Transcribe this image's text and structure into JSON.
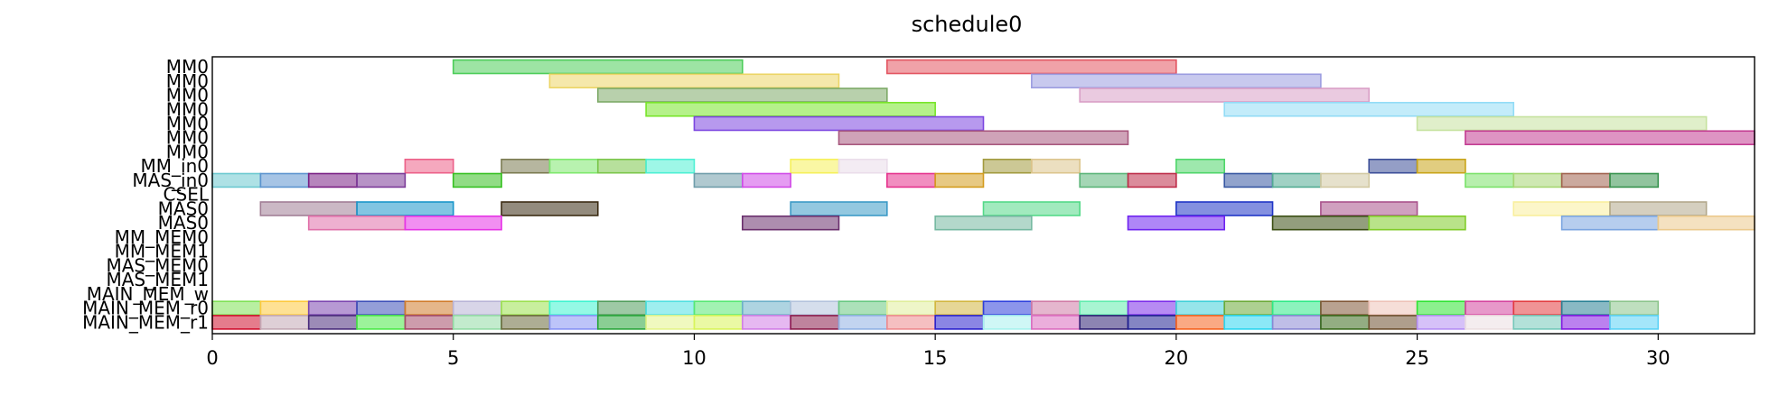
{
  "chart_data": {
    "type": "gantt",
    "title": "schedule0",
    "xlim": [
      0,
      32
    ],
    "x_ticks": [
      0,
      5,
      10,
      15,
      20,
      25,
      30
    ],
    "rows": [
      "MM0",
      "MM0",
      "MM0",
      "MM0",
      "MM0",
      "MM0",
      "MM0",
      "MM_in0",
      "MAS_in0",
      "CSEL",
      "MAS0",
      "MAS0",
      "MM_MEM0",
      "MM_MEM1",
      "MAS_MEM0",
      "MAS_MEM1",
      "MAIN_MEM_w",
      "MAIN_MEM_r0",
      "MAIN_MEM_r1"
    ],
    "tasks": [
      {
        "row": 0,
        "start": 5,
        "end": 11,
        "color": "#4ccd59"
      },
      {
        "row": 0,
        "start": 14,
        "end": 20,
        "color": "#e35561"
      },
      {
        "row": 1,
        "start": 7,
        "end": 13,
        "color": "#ecd566"
      },
      {
        "row": 1,
        "start": 17,
        "end": 23,
        "color": "#9b9ce0"
      },
      {
        "row": 2,
        "start": 8,
        "end": 14,
        "color": "#7daa67"
      },
      {
        "row": 2,
        "start": 18,
        "end": 24,
        "color": "#d99fc6"
      },
      {
        "row": 3,
        "start": 9,
        "end": 15,
        "color": "#78e52a"
      },
      {
        "row": 3,
        "start": 21,
        "end": 27,
        "color": "#92dcf6"
      },
      {
        "row": 4,
        "start": 10,
        "end": 16,
        "color": "#7c46e0"
      },
      {
        "row": 4,
        "start": 25,
        "end": 31,
        "color": "#c6e29f"
      },
      {
        "row": 5,
        "start": 13,
        "end": 19,
        "color": "#a8587e"
      },
      {
        "row": 5,
        "start": 26,
        "end": 32,
        "color": "#c33c92"
      },
      {
        "row": 7,
        "start": 4,
        "end": 5,
        "color": "#ec6088"
      },
      {
        "row": 7,
        "start": 6,
        "end": 7,
        "color": "#7a7a50"
      },
      {
        "row": 7,
        "start": 7,
        "end": 8,
        "color": "#7ee86d"
      },
      {
        "row": 7,
        "start": 8,
        "end": 9,
        "color": "#7bc64a"
      },
      {
        "row": 7,
        "start": 9,
        "end": 10,
        "color": "#4ef0d4"
      },
      {
        "row": 7,
        "start": 12,
        "end": 13,
        "color": "#f6f05a"
      },
      {
        "row": 7,
        "start": 13,
        "end": 14,
        "color": "#eaddea"
      },
      {
        "row": 7,
        "start": 16,
        "end": 17,
        "color": "#a29a3e"
      },
      {
        "row": 7,
        "start": 17,
        "end": 18,
        "color": "#dcc58d"
      },
      {
        "row": 7,
        "start": 20,
        "end": 21,
        "color": "#4fd66a"
      },
      {
        "row": 7,
        "start": 24,
        "end": 25,
        "color": "#3c4f98"
      },
      {
        "row": 7,
        "start": 25,
        "end": 26,
        "color": "#c8a418"
      },
      {
        "row": 8,
        "start": 0,
        "end": 1,
        "color": "#6cc9d0"
      },
      {
        "row": 8,
        "start": 1,
        "end": 2,
        "color": "#5d94cf"
      },
      {
        "row": 8,
        "start": 2,
        "end": 3,
        "color": "#7a2085"
      },
      {
        "row": 8,
        "start": 3,
        "end": 4,
        "color": "#7c3b98"
      },
      {
        "row": 8,
        "start": 5,
        "end": 6,
        "color": "#36c021"
      },
      {
        "row": 8,
        "start": 10,
        "end": 11,
        "color": "#6f9daa"
      },
      {
        "row": 8,
        "start": 11,
        "end": 12,
        "color": "#d04ae7"
      },
      {
        "row": 8,
        "start": 14,
        "end": 15,
        "color": "#e5328d"
      },
      {
        "row": 8,
        "start": 15,
        "end": 16,
        "color": "#d49c1e"
      },
      {
        "row": 8,
        "start": 18,
        "end": 19,
        "color": "#5ab478"
      },
      {
        "row": 8,
        "start": 19,
        "end": 20,
        "color": "#be2c49"
      },
      {
        "row": 8,
        "start": 21,
        "end": 22,
        "color": "#3757a2"
      },
      {
        "row": 8,
        "start": 22,
        "end": 23,
        "color": "#52ab93"
      },
      {
        "row": 8,
        "start": 23,
        "end": 24,
        "color": "#d2c9a2"
      },
      {
        "row": 8,
        "start": 26,
        "end": 27,
        "color": "#7be26a"
      },
      {
        "row": 8,
        "start": 27,
        "end": 28,
        "color": "#a6d672"
      },
      {
        "row": 8,
        "start": 28,
        "end": 29,
        "color": "#a0624e"
      },
      {
        "row": 8,
        "start": 29,
        "end": 30,
        "color": "#37934e"
      },
      {
        "row": 10,
        "start": 1,
        "end": 3,
        "color": "#a17e95"
      },
      {
        "row": 10,
        "start": 3,
        "end": 5,
        "color": "#1996ca"
      },
      {
        "row": 10,
        "start": 6,
        "end": 8,
        "color": "#3b2b12"
      },
      {
        "row": 10,
        "start": 12,
        "end": 14,
        "color": "#3b9ac6"
      },
      {
        "row": 10,
        "start": 16,
        "end": 18,
        "color": "#53d988"
      },
      {
        "row": 10,
        "start": 20,
        "end": 22,
        "color": "#1f35c6"
      },
      {
        "row": 10,
        "start": 23,
        "end": 25,
        "color": "#a9528b"
      },
      {
        "row": 10,
        "start": 27,
        "end": 29,
        "color": "#f9ef9c"
      },
      {
        "row": 10,
        "start": 29,
        "end": 31,
        "color": "#b2a88b"
      },
      {
        "row": 11,
        "start": 2,
        "end": 4,
        "color": "#e070a9"
      },
      {
        "row": 11,
        "start": 4,
        "end": 6,
        "color": "#e633e6"
      },
      {
        "row": 11,
        "start": 11,
        "end": 13,
        "color": "#6a2f6d"
      },
      {
        "row": 11,
        "start": 15,
        "end": 17,
        "color": "#74b8a0"
      },
      {
        "row": 11,
        "start": 19,
        "end": 21,
        "color": "#6e22f0"
      },
      {
        "row": 11,
        "start": 22,
        "end": 24,
        "color": "#3b4f13"
      },
      {
        "row": 11,
        "start": 24,
        "end": 26,
        "color": "#80cc28"
      },
      {
        "row": 11,
        "start": 28,
        "end": 30,
        "color": "#7aa4e0"
      },
      {
        "row": 11,
        "start": 30,
        "end": 32,
        "color": "#ebc98c"
      },
      {
        "row": 17,
        "start": 0,
        "end": 1,
        "color": "#7ee254"
      },
      {
        "row": 17,
        "start": 1,
        "end": 2,
        "color": "#fdc93d"
      },
      {
        "row": 17,
        "start": 2,
        "end": 3,
        "color": "#7b45b0"
      },
      {
        "row": 17,
        "start": 3,
        "end": 4,
        "color": "#3d4eb8"
      },
      {
        "row": 17,
        "start": 4,
        "end": 5,
        "color": "#cf7a2a"
      },
      {
        "row": 17,
        "start": 5,
        "end": 6,
        "color": "#b8b3d6"
      },
      {
        "row": 17,
        "start": 6,
        "end": 7,
        "color": "#9be14d"
      },
      {
        "row": 17,
        "start": 7,
        "end": 8,
        "color": "#3cf4cf"
      },
      {
        "row": 17,
        "start": 8,
        "end": 9,
        "color": "#4f9c5b"
      },
      {
        "row": 17,
        "start": 9,
        "end": 10,
        "color": "#4fe0e1"
      },
      {
        "row": 17,
        "start": 10,
        "end": 11,
        "color": "#56e873"
      },
      {
        "row": 17,
        "start": 11,
        "end": 12,
        "color": "#6cb0c8"
      },
      {
        "row": 17,
        "start": 12,
        "end": 13,
        "color": "#b3c3dc"
      },
      {
        "row": 17,
        "start": 13,
        "end": 14,
        "color": "#67c880"
      },
      {
        "row": 17,
        "start": 14,
        "end": 15,
        "color": "#e0ee9a"
      },
      {
        "row": 17,
        "start": 15,
        "end": 16,
        "color": "#d2b53f"
      },
      {
        "row": 17,
        "start": 16,
        "end": 17,
        "color": "#2d3edb"
      },
      {
        "row": 17,
        "start": 17,
        "end": 18,
        "color": "#cf7aa6"
      },
      {
        "row": 17,
        "start": 18,
        "end": 19,
        "color": "#60ecad"
      },
      {
        "row": 17,
        "start": 19,
        "end": 20,
        "color": "#7b2cea"
      },
      {
        "row": 17,
        "start": 20,
        "end": 21,
        "color": "#3fcfd8"
      },
      {
        "row": 17,
        "start": 21,
        "end": 22,
        "color": "#6aaa36"
      },
      {
        "row": 17,
        "start": 22,
        "end": 23,
        "color": "#2eea86"
      },
      {
        "row": 17,
        "start": 23,
        "end": 24,
        "color": "#7f5634"
      },
      {
        "row": 17,
        "start": 24,
        "end": 25,
        "color": "#eec2b8"
      },
      {
        "row": 17,
        "start": 25,
        "end": 26,
        "color": "#2ee432"
      },
      {
        "row": 17,
        "start": 26,
        "end": 27,
        "color": "#d3439e"
      },
      {
        "row": 17,
        "start": 27,
        "end": 28,
        "color": "#e33a3e"
      },
      {
        "row": 17,
        "start": 28,
        "end": 29,
        "color": "#287f94"
      },
      {
        "row": 17,
        "start": 29,
        "end": 30,
        "color": "#8bc48b"
      },
      {
        "row": 18,
        "start": 0,
        "end": 1,
        "color": "#d0102d"
      },
      {
        "row": 18,
        "start": 1,
        "end": 2,
        "color": "#c2a8b4"
      },
      {
        "row": 18,
        "start": 2,
        "end": 3,
        "color": "#4a2c7b"
      },
      {
        "row": 18,
        "start": 3,
        "end": 4,
        "color": "#4bea47"
      },
      {
        "row": 18,
        "start": 4,
        "end": 5,
        "color": "#a44a68"
      },
      {
        "row": 18,
        "start": 5,
        "end": 6,
        "color": "#92dba4"
      },
      {
        "row": 18,
        "start": 6,
        "end": 7,
        "color": "#6a6a3c"
      },
      {
        "row": 18,
        "start": 7,
        "end": 8,
        "color": "#8793f4"
      },
      {
        "row": 18,
        "start": 8,
        "end": 9,
        "color": "#2aa63c"
      },
      {
        "row": 18,
        "start": 9,
        "end": 10,
        "color": "#e4f48a"
      },
      {
        "row": 18,
        "start": 10,
        "end": 11,
        "color": "#d8f45a"
      },
      {
        "row": 18,
        "start": 11,
        "end": 12,
        "color": "#d17ee6"
      },
      {
        "row": 18,
        "start": 12,
        "end": 13,
        "color": "#8b1d4c"
      },
      {
        "row": 18,
        "start": 13,
        "end": 14,
        "color": "#90b1e4"
      },
      {
        "row": 18,
        "start": 14,
        "end": 15,
        "color": "#ed8a8e"
      },
      {
        "row": 18,
        "start": 15,
        "end": 16,
        "color": "#2922cd"
      },
      {
        "row": 18,
        "start": 16,
        "end": 17,
        "color": "#a7f1ee"
      },
      {
        "row": 18,
        "start": 17,
        "end": 18,
        "color": "#db6cbf"
      },
      {
        "row": 18,
        "start": 18,
        "end": 19,
        "color": "#2d1f73"
      },
      {
        "row": 18,
        "start": 19,
        "end": 20,
        "color": "#1f2091"
      },
      {
        "row": 18,
        "start": 20,
        "end": 21,
        "color": "#f6631d"
      },
      {
        "row": 18,
        "start": 21,
        "end": 22,
        "color": "#2bd6f0"
      },
      {
        "row": 18,
        "start": 22,
        "end": 23,
        "color": "#8a88d3"
      },
      {
        "row": 18,
        "start": 23,
        "end": 24,
        "color": "#3a6a1c"
      },
      {
        "row": 18,
        "start": 24,
        "end": 25,
        "color": "#6d4f2e"
      },
      {
        "row": 18,
        "start": 25,
        "end": 26,
        "color": "#b58ef3"
      },
      {
        "row": 18,
        "start": 26,
        "end": 27,
        "color": "#ebdfe1"
      },
      {
        "row": 18,
        "start": 27,
        "end": 28,
        "color": "#74c8ba"
      },
      {
        "row": 18,
        "start": 28,
        "end": 29,
        "color": "#8419e1"
      },
      {
        "row": 18,
        "start": 29,
        "end": 30,
        "color": "#5ad2f6"
      }
    ]
  }
}
